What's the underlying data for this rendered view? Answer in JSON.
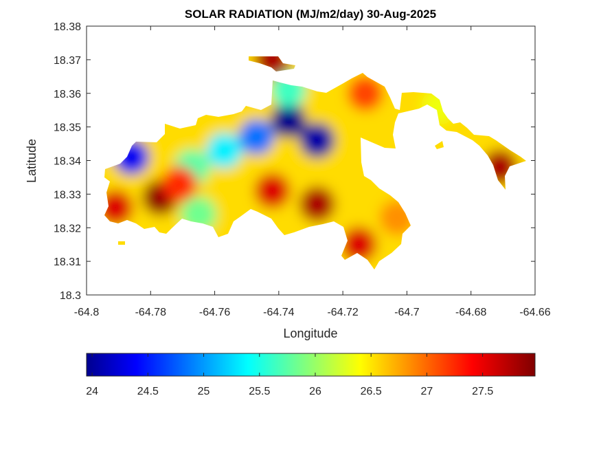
{
  "chart_data": {
    "type": "heatmap",
    "title": "SOLAR RADIATION (MJ/m2/day) 30-Aug-2025",
    "xlabel": "Longitude",
    "ylabel": "Latitude",
    "xlim": [
      -64.8,
      -64.66
    ],
    "ylim": [
      18.3,
      18.38
    ],
    "xticks": [
      -64.8,
      -64.78,
      -64.76,
      -64.74,
      -64.72,
      -64.7,
      -64.68,
      -64.66
    ],
    "xtick_labels": [
      "-64.8",
      "-64.78",
      "-64.76",
      "-64.74",
      "-64.72",
      "-64.7",
      "-64.68",
      "-64.66"
    ],
    "yticks": [
      18.3,
      18.31,
      18.32,
      18.33,
      18.34,
      18.35,
      18.36,
      18.37,
      18.38
    ],
    "ytick_labels": [
      "18.3",
      "18.31",
      "18.32",
      "18.33",
      "18.34",
      "18.35",
      "18.36",
      "18.37",
      "18.38"
    ],
    "colormap": "jet",
    "colorbar": {
      "orientation": "horizontal",
      "placement": "bottom",
      "range": [
        23.95,
        27.97
      ],
      "ticks": [
        24,
        24.5,
        25,
        25.5,
        26,
        26.5,
        27,
        27.5
      ],
      "tick_labels": [
        "24",
        "24.5",
        "25",
        "25.5",
        "26",
        "26.5",
        "27",
        "27.5"
      ]
    },
    "grid": false,
    "hotspots": [
      {
        "lon": -64.737,
        "lat": 18.352,
        "value": 24.0
      },
      {
        "lon": -64.728,
        "lat": 18.346,
        "value": 24.1
      },
      {
        "lon": -64.786,
        "lat": 18.341,
        "value": 24.4
      },
      {
        "lon": -64.747,
        "lat": 18.347,
        "value": 24.9
      },
      {
        "lon": -64.757,
        "lat": 18.343,
        "value": 25.4
      },
      {
        "lon": -64.767,
        "lat": 18.338,
        "value": 25.8
      },
      {
        "lon": -64.765,
        "lat": 18.324,
        "value": 25.9
      },
      {
        "lon": -64.737,
        "lat": 18.361,
        "value": 25.7
      },
      {
        "lon": -64.777,
        "lat": 18.329,
        "value": 27.9
      },
      {
        "lon": -64.728,
        "lat": 18.327,
        "value": 27.8
      },
      {
        "lon": -64.742,
        "lat": 18.331,
        "value": 27.6
      },
      {
        "lon": -64.791,
        "lat": 18.326,
        "value": 27.6
      },
      {
        "lon": -64.742,
        "lat": 18.37,
        "value": 27.8
      },
      {
        "lon": -64.715,
        "lat": 18.315,
        "value": 27.6
      },
      {
        "lon": -64.671,
        "lat": 18.338,
        "value": 27.8
      },
      {
        "lon": -64.713,
        "lat": 18.36,
        "value": 27.2
      },
      {
        "lon": -64.703,
        "lat": 18.323,
        "value": 26.9
      },
      {
        "lon": -64.771,
        "lat": 18.333,
        "value": 27.3
      },
      {
        "lon": -64.69,
        "lat": 18.356,
        "value": 26.4
      }
    ]
  }
}
